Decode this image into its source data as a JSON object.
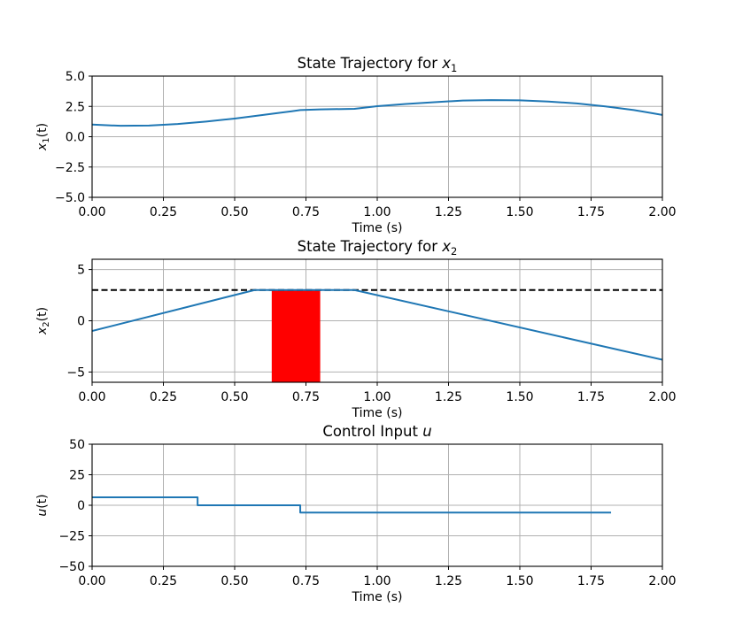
{
  "chart_data": [
    {
      "type": "line",
      "title": "State Trajectory for x1",
      "title_parts": {
        "prefix": "State Trajectory for ",
        "var": "x",
        "sub": "1"
      },
      "ylabel_parts": {
        "var": "x",
        "sub": "1",
        "suffix": "(t)"
      },
      "xlabel": "Time (s)",
      "xlim": [
        0,
        2
      ],
      "ylim": [
        -5,
        5
      ],
      "xticks": [
        0,
        0.25,
        0.5,
        0.75,
        1.0,
        1.25,
        1.5,
        1.75,
        2.0
      ],
      "xtick_labels": [
        "0.00",
        "0.25",
        "0.50",
        "0.75",
        "1.00",
        "1.25",
        "1.50",
        "1.75",
        "2.00"
      ],
      "yticks": [
        -5,
        -2.5,
        0,
        2.5,
        5
      ],
      "ytick_labels": [
        "−5.0",
        "−2.5",
        "0.0",
        "2.5",
        "5.0"
      ],
      "grid": true,
      "color": "#1f77b4",
      "series": [
        {
          "x": [
            0,
            0.1,
            0.2,
            0.3,
            0.4,
            0.5,
            0.6,
            0.7,
            0.73,
            0.8,
            0.92,
            1.0,
            1.1,
            1.2,
            1.3,
            1.4,
            1.5,
            1.6,
            1.7,
            1.8,
            1.9,
            2.0
          ],
          "y": [
            1.0,
            0.9,
            0.92,
            1.05,
            1.25,
            1.5,
            1.8,
            2.1,
            2.2,
            2.25,
            2.3,
            2.52,
            2.7,
            2.85,
            2.98,
            3.02,
            3.0,
            2.9,
            2.75,
            2.5,
            2.2,
            1.8
          ]
        }
      ]
    },
    {
      "type": "line",
      "title": "State Trajectory for x2",
      "title_parts": {
        "prefix": "State Trajectory for ",
        "var": "x",
        "sub": "2"
      },
      "ylabel_parts": {
        "var": "x",
        "sub": "2",
        "suffix": "(t)"
      },
      "xlabel": "Time (s)",
      "xlim": [
        0,
        2
      ],
      "ylim": [
        -6,
        6
      ],
      "xticks": [
        0,
        0.25,
        0.5,
        0.75,
        1.0,
        1.25,
        1.5,
        1.75,
        2.0
      ],
      "xtick_labels": [
        "0.00",
        "0.25",
        "0.50",
        "0.75",
        "1.00",
        "1.25",
        "1.50",
        "1.75",
        "2.00"
      ],
      "yticks": [
        -5,
        0,
        5
      ],
      "ytick_labels": [
        "−5",
        "0",
        "5"
      ],
      "grid": true,
      "color": "#1f77b4",
      "reference_line": {
        "y": 3,
        "color": "#000000",
        "style": "dashed"
      },
      "shaded_region": {
        "x0": 0.63,
        "x1": 0.8,
        "y0": -6,
        "y1": 3,
        "color": "#ff0000"
      },
      "series": [
        {
          "x": [
            0,
            0.57,
            0.92,
            2.0
          ],
          "y": [
            -1.0,
            3.0,
            3.0,
            -3.8
          ]
        }
      ]
    },
    {
      "type": "line",
      "title": "Control Input u",
      "title_parts": {
        "prefix": "Control Input ",
        "var": "u",
        "sub": ""
      },
      "ylabel_parts": {
        "var": "u",
        "sub": "",
        "suffix": "(t)"
      },
      "xlabel": "Time (s)",
      "xlim": [
        0,
        2
      ],
      "ylim": [
        -50,
        50
      ],
      "xticks": [
        0,
        0.25,
        0.5,
        0.75,
        1.0,
        1.25,
        1.5,
        1.75,
        2.0
      ],
      "xtick_labels": [
        "0.00",
        "0.25",
        "0.50",
        "0.75",
        "1.00",
        "1.25",
        "1.50",
        "1.75",
        "2.00"
      ],
      "yticks": [
        -50,
        -25,
        0,
        25,
        50
      ],
      "ytick_labels": [
        "−50",
        "−25",
        "0",
        "25",
        "50"
      ],
      "grid": true,
      "color": "#1f77b4",
      "series": [
        {
          "x": [
            0,
            0.37,
            0.37,
            0.73,
            0.73,
            1.82
          ],
          "y": [
            6.5,
            6.5,
            0,
            0,
            -6,
            -6
          ]
        }
      ]
    }
  ]
}
